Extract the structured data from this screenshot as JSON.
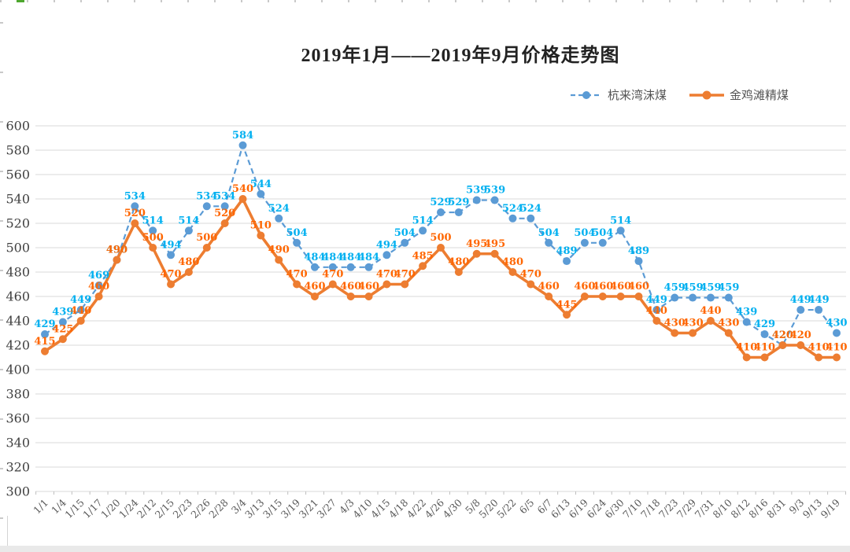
{
  "chart_data": {
    "type": "line",
    "title": "2019年1月——2019年9月价格走势图",
    "categories": [
      "1/1",
      "1/4",
      "1/15",
      "1/17",
      "1/20",
      "1/24",
      "2/12",
      "2/15",
      "2/23",
      "2/26",
      "2/28",
      "3/4",
      "3/13",
      "3/15",
      "3/19",
      "3/21",
      "3/27",
      "4/3",
      "4/10",
      "4/15",
      "4/18",
      "4/22",
      "4/26",
      "4/30",
      "5/8",
      "5/20",
      "5/22",
      "6/5",
      "6/7",
      "6/13",
      "6/19",
      "6/24",
      "6/30",
      "7/10",
      "7/18",
      "7/23",
      "7/29",
      "7/31",
      "8/10",
      "8/12",
      "8/16",
      "8/31",
      "9/3",
      "9/13",
      "9/19"
    ],
    "series": [
      {
        "name": "杭来湾沫煤",
        "color": "#5B9BD5",
        "label_color": "#00B0F0",
        "line_style": "dashed",
        "values": [
          429,
          439,
          449,
          469,
          490,
          534,
          514,
          494,
          514,
          534,
          534,
          584,
          544,
          524,
          504,
          484,
          484,
          484,
          484,
          494,
          504,
          514,
          529,
          529,
          539,
          539,
          524,
          524,
          504,
          489,
          504,
          504,
          514,
          489,
          449,
          459,
          459,
          459,
          459,
          439,
          429,
          420,
          449,
          449,
          430
        ]
      },
      {
        "name": "金鸡滩精煤",
        "color": "#ED7D31",
        "label_color": "#FF6600",
        "line_style": "solid",
        "values": [
          415,
          425,
          440,
          460,
          490,
          520,
          500,
          470,
          480,
          500,
          520,
          540,
          510,
          490,
          470,
          460,
          470,
          460,
          460,
          470,
          470,
          485,
          500,
          480,
          495,
          495,
          480,
          470,
          460,
          445,
          460,
          460,
          460,
          460,
          440,
          430,
          430,
          440,
          430,
          410,
          410,
          420,
          420,
          410,
          410
        ]
      }
    ],
    "ylim": [
      300,
      600
    ],
    "ytick_step": 20,
    "grid": true,
    "legend_position": "top-right",
    "xlabel": "",
    "ylabel": ""
  },
  "colors": {
    "gridline": "#d9d9d9",
    "y_tick_text": "#404040",
    "x_tick_text": "#595959"
  }
}
